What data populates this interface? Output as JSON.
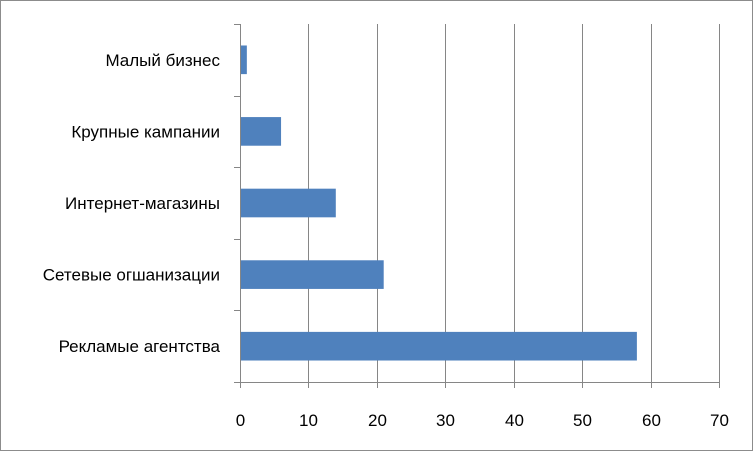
{
  "chart_data": {
    "type": "bar",
    "orientation": "horizontal",
    "categories": [
      "Малый бизнес",
      "Крупные кампании",
      "Интернет-магазины",
      "Сетевые огшанизации",
      "Рекламые агентства"
    ],
    "values": [
      1,
      6,
      14,
      21,
      58
    ],
    "x_ticks": [
      "0",
      "10",
      "20",
      "30",
      "40",
      "50",
      "60",
      "70"
    ],
    "xlim": [
      0,
      70
    ],
    "title": "",
    "xlabel": "",
    "ylabel": "",
    "grid": "vertical",
    "legend": "none",
    "bar_color": "#4F81BD",
    "grid_color": "#868686"
  }
}
